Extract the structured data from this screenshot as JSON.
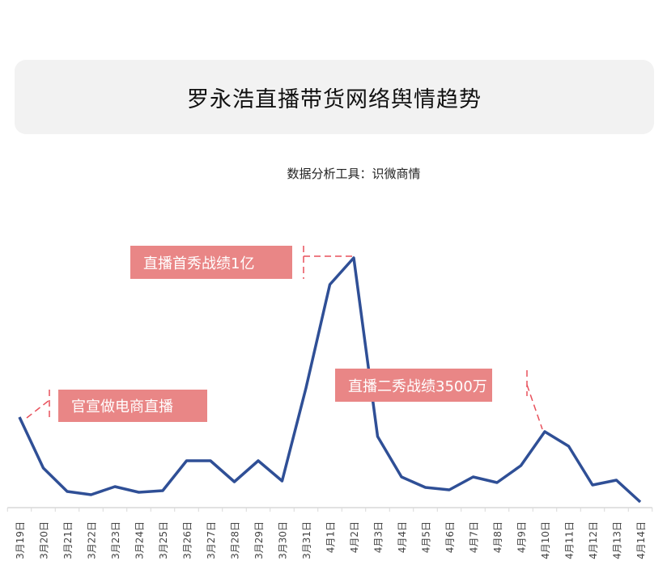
{
  "header": {
    "title": "罗永浩直播带货网络舆情趋势",
    "subtitle": "数据分析工具：识微商情"
  },
  "chart_data": {
    "type": "line",
    "title": "罗永浩直播带货网络舆情趋势",
    "xlabel": "",
    "ylabel": "",
    "y_axis_visible": false,
    "grid": false,
    "ylim": [
      0,
      320
    ],
    "line_color": "#2f4f96",
    "categories": [
      "3月19日",
      "3月20日",
      "3月21日",
      "3月22日",
      "3月23日",
      "3月24日",
      "3月25日",
      "3月26日",
      "3月27日",
      "3月28日",
      "3月29日",
      "3月30日",
      "3月31日",
      "4月1日",
      "4月2日",
      "4月3日",
      "4月4日",
      "4月5日",
      "4月6日",
      "4月7日",
      "4月8日",
      "4月9日",
      "4月10日",
      "4月11日",
      "4月12日",
      "4月13日",
      "4月14日"
    ],
    "values": [
      112,
      49,
      20,
      16,
      26,
      19,
      21,
      58,
      58,
      32,
      58,
      33,
      148,
      276,
      309,
      88,
      38,
      25,
      22,
      38,
      31,
      52,
      94,
      76,
      28,
      34,
      7
    ],
    "annotations": [
      {
        "text": "官宣做电商直播",
        "category": "3月19日"
      },
      {
        "text": "直播首秀战绩1亿",
        "category": "4月2日"
      },
      {
        "text": "直播二秀战绩3500万",
        "category": "4月10日"
      }
    ],
    "annotation_color": "#e98686"
  }
}
